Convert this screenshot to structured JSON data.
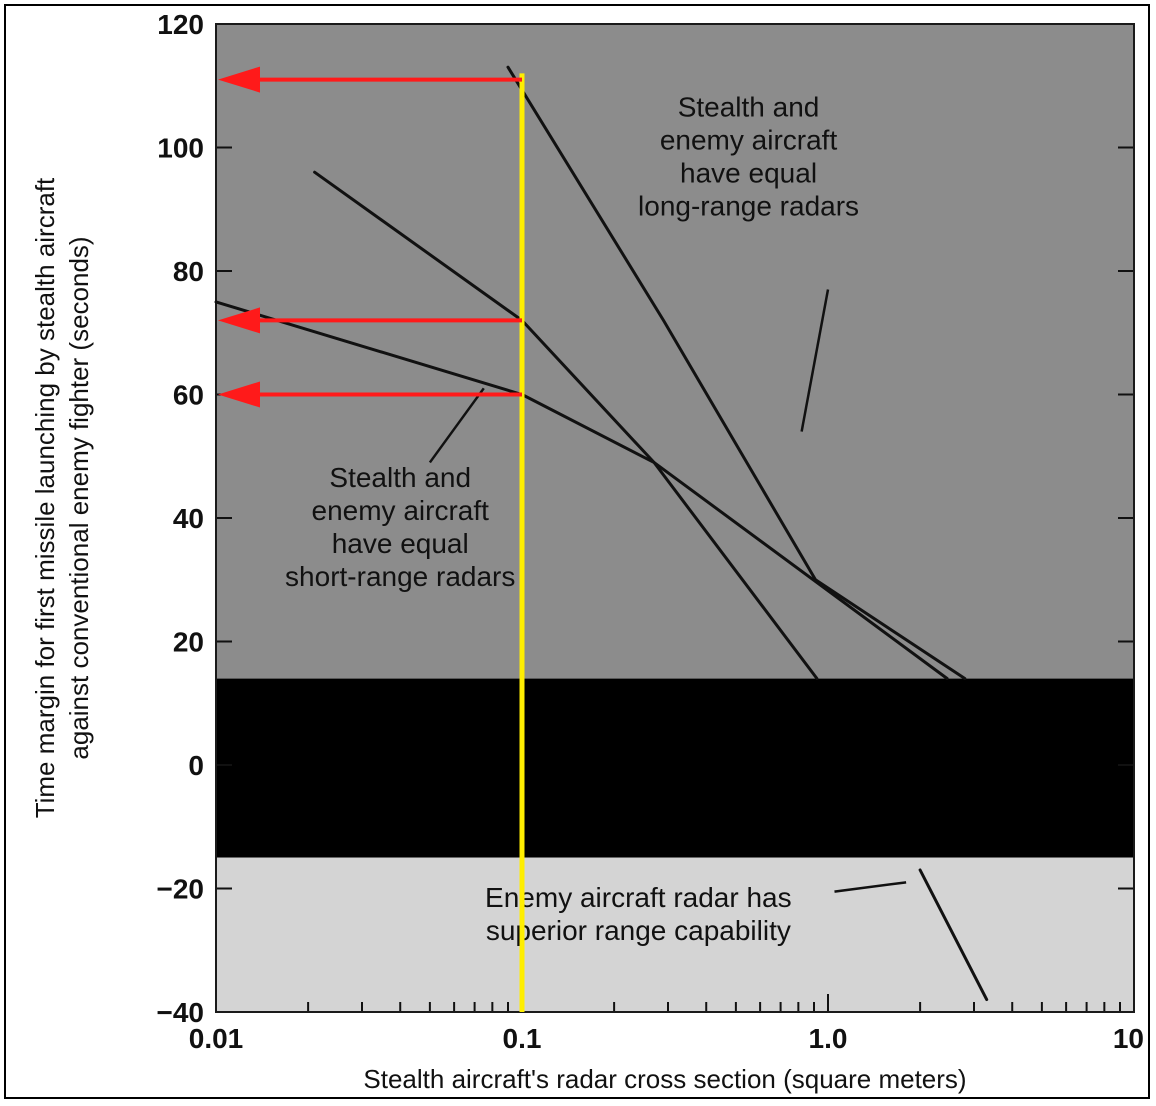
{
  "chart_data": {
    "type": "line",
    "x_scale": "log",
    "xlabel": "Stealth aircraft's radar cross section (square meters)",
    "ylabel": "Time margin for first missile launching by stealth aircraft against conventional enemy fighter (seconds)",
    "ylabel_lines": [
      "Time margin for first missile launching by stealth aircraft",
      "against conventional enemy fighter (seconds)"
    ],
    "xlim": [
      0.01,
      10
    ],
    "ylim": [
      -40,
      120
    ],
    "x_ticks": [
      0.01,
      0.1,
      1.0,
      10
    ],
    "x_tick_labels": [
      "0.01",
      "0.1",
      "1.0",
      "10"
    ],
    "y_ticks": [
      -40,
      -20,
      0,
      20,
      40,
      60,
      80,
      100,
      120
    ],
    "y_tick_labels": [
      "−40",
      "−20",
      "0",
      "20",
      "40",
      "60",
      "80",
      "100",
      "120"
    ],
    "grid": false,
    "series": [
      {
        "points": [
          [
            0.09,
            113
          ],
          [
            0.29,
            72
          ],
          [
            0.91,
            30
          ],
          [
            2.8,
            14
          ]
        ]
      },
      {
        "points": [
          [
            0.021,
            96
          ],
          [
            0.1,
            72
          ],
          [
            0.27,
            49
          ],
          [
            0.92,
            14
          ]
        ]
      },
      {
        "points": [
          [
            0.01,
            75
          ],
          [
            0.1,
            60
          ],
          [
            0.27,
            49
          ],
          [
            2.45,
            14
          ]
        ]
      },
      {
        "points": [
          [
            2.0,
            -17
          ],
          [
            3.3,
            -38
          ]
        ]
      }
    ],
    "bands": [
      {
        "y_range": [
          -15,
          14
        ],
        "color": "#000000"
      },
      {
        "y_range": [
          -40,
          -15
        ],
        "color": "#d4d4d4"
      },
      {
        "y_range": [
          14,
          120
        ],
        "color": "#8c8c8c"
      }
    ],
    "reference_line": {
      "x": 0.1,
      "color": "#ffee00"
    },
    "arrows": [
      {
        "y": 111,
        "color": "#ff1a1a"
      },
      {
        "y": 72,
        "color": "#ff1a1a"
      },
      {
        "y": 60,
        "color": "#ff1a1a"
      }
    ],
    "annotations": [
      {
        "lines": [
          "Stealth and",
          "enemy aircraft",
          "have equal",
          "long-range radars"
        ],
        "anchor_x": 0.55,
        "anchor_y": 105,
        "leader_from": [
          1.0,
          77
        ],
        "leader_to": [
          0.82,
          54
        ]
      },
      {
        "lines": [
          "Stealth and",
          "enemy aircraft",
          "have equal",
          "short-range radars"
        ],
        "anchor_x": 0.04,
        "anchor_y": 45,
        "leader_from": [
          0.05,
          49
        ],
        "leader_to": [
          0.075,
          61
        ]
      },
      {
        "lines": [
          "Enemy aircraft radar has",
          "superior range capability"
        ],
        "anchor_x": 0.24,
        "anchor_y": -23,
        "leader_from": [
          1.05,
          -20.5
        ],
        "leader_to": [
          1.8,
          -19
        ]
      }
    ]
  }
}
